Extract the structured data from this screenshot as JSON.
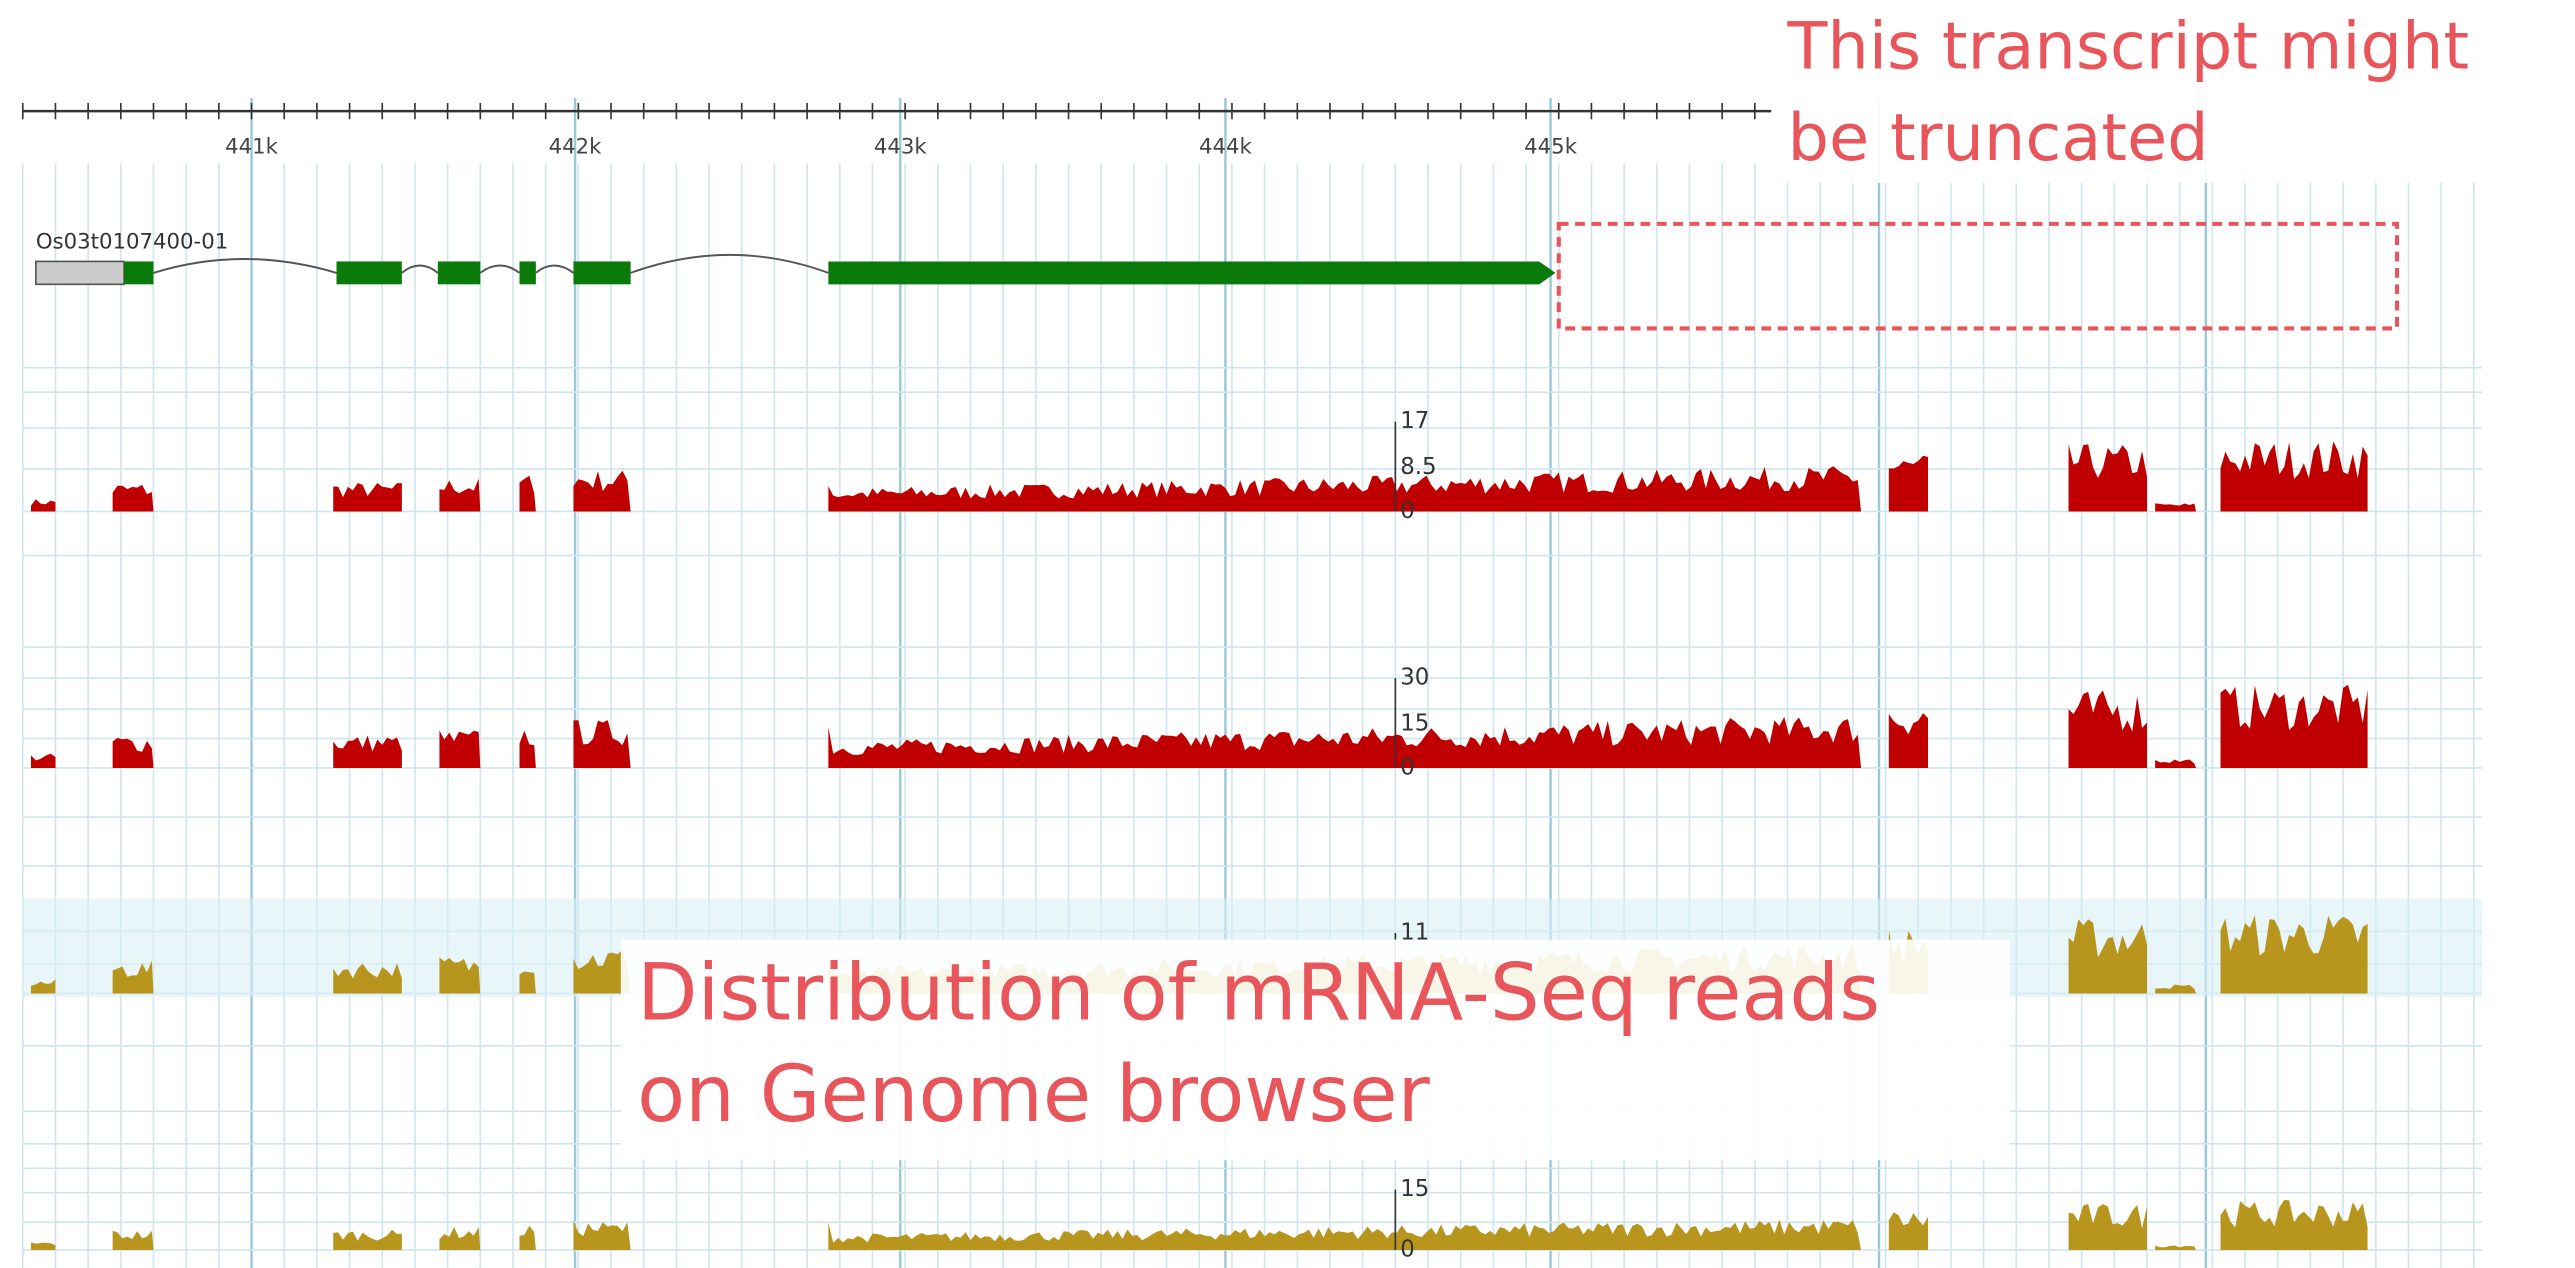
{
  "ruler": {
    "labels": [
      "441k",
      "442k",
      "443k",
      "444k",
      "445k"
    ]
  },
  "gene": {
    "name": "Os03t0107400-01",
    "color": "#0a7a0a"
  },
  "tracks": [
    {
      "color": "#c00000",
      "scale": [
        "17",
        "8.5",
        "0"
      ]
    },
    {
      "color": "#c00000",
      "scale": [
        "30",
        "15",
        "0"
      ]
    },
    {
      "color": "#b8961e",
      "scale": [
        "11"
      ]
    },
    {
      "color": "#b8961e",
      "scale": [
        "15",
        "0"
      ]
    }
  ],
  "annotations": {
    "truncated": [
      "This transcript might",
      "be truncated"
    ],
    "distribution": [
      "Distribution of mRNA-Seq reads",
      "on Genome browser"
    ]
  }
}
